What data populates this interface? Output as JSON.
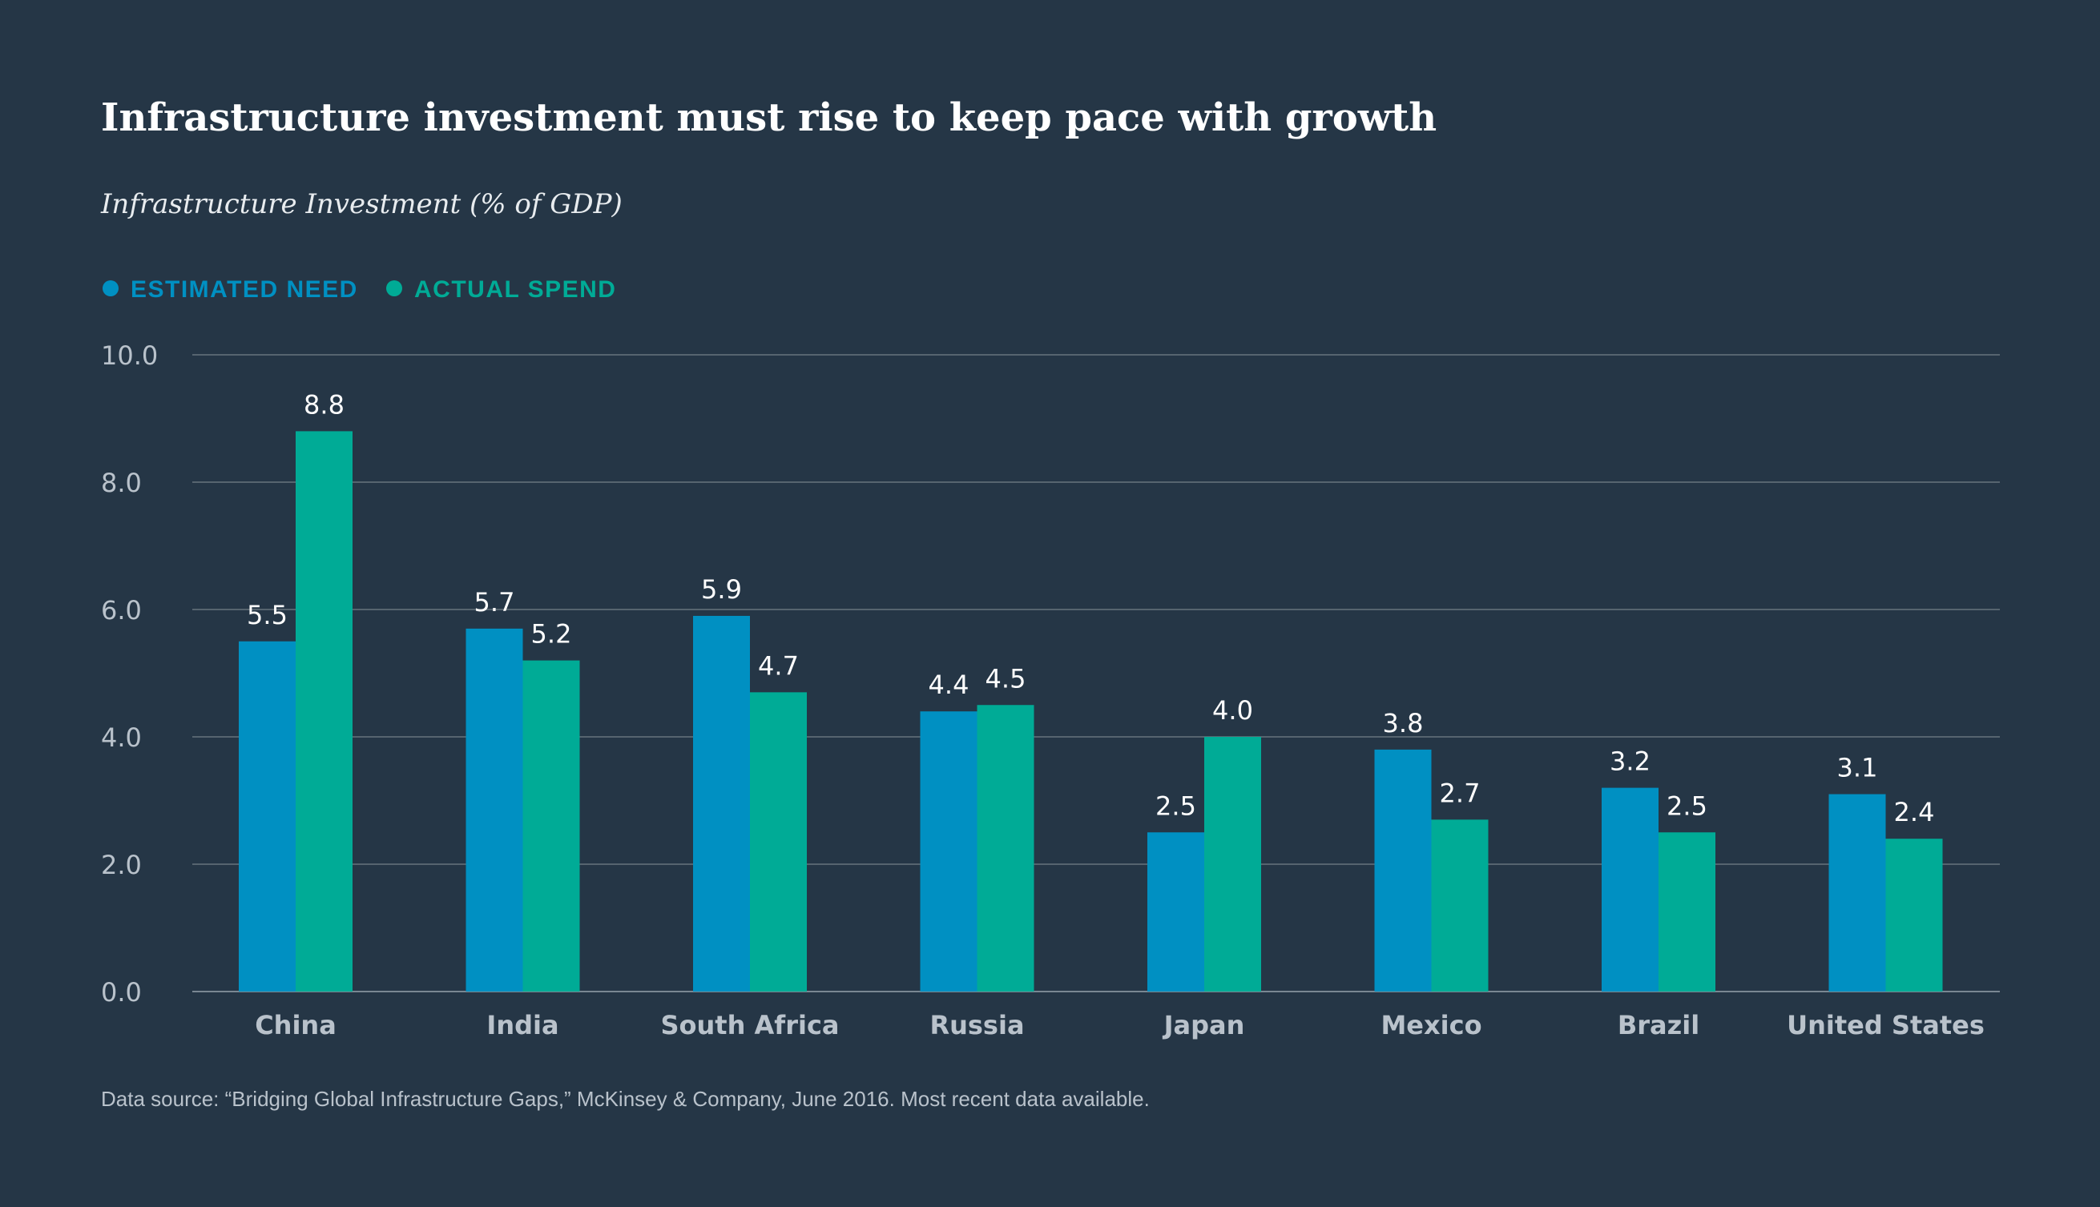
{
  "colors": {
    "background": "#253646",
    "estimated_need": "#0090C2",
    "actual_spend": "#00AB96"
  },
  "chart_data": {
    "type": "bar",
    "title": "Infrastructure investment must rise to keep pace with growth",
    "subtitle": "Infrastructure Investment (% of GDP)",
    "xlabel": "",
    "ylabel": "",
    "ylim": [
      0,
      10
    ],
    "yticks": [
      0,
      2,
      4,
      6,
      8,
      10
    ],
    "ytick_labels": [
      "0.0",
      "2.0",
      "4.0",
      "6.0",
      "8.0",
      "10.0"
    ],
    "grid": true,
    "legend_position": "top-left",
    "categories": [
      "China",
      "India",
      "South Africa",
      "Russia",
      "Japan",
      "Mexico",
      "Brazil",
      "United States"
    ],
    "series": [
      {
        "name": "ESTIMATED NEED",
        "color": "#0090C2",
        "values": [
          5.5,
          5.7,
          5.9,
          4.4,
          2.5,
          3.8,
          3.2,
          3.1
        ],
        "labels": [
          "5.5",
          "5.7",
          "5.9",
          "4.4",
          "2.5",
          "3.8",
          "3.2",
          "3.1"
        ]
      },
      {
        "name": "ACTUAL SPEND",
        "color": "#00AB96",
        "values": [
          8.8,
          5.2,
          4.7,
          4.5,
          4.0,
          2.7,
          2.5,
          2.4
        ],
        "labels": [
          "8.8",
          "5.2",
          "4.7",
          "4.5",
          "4.0",
          "2.7",
          "2.5",
          "2.4"
        ]
      }
    ],
    "source": "Data source: “Bridging Global Infrastructure Gaps,” McKinsey & Company, June 2016. Most recent data available."
  }
}
